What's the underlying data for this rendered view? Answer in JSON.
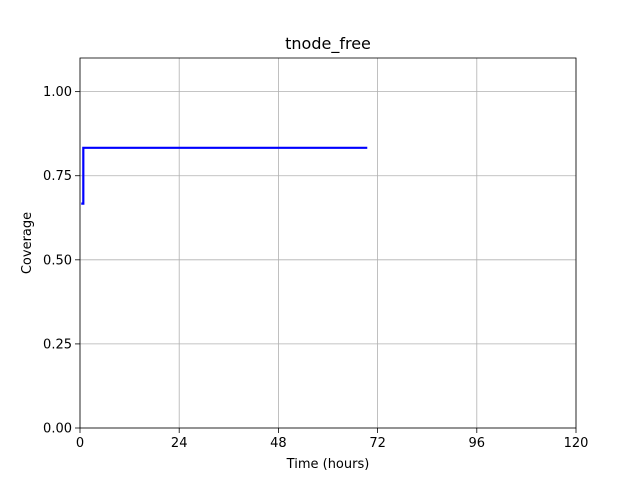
{
  "chart_data": {
    "type": "line",
    "title": "tnode_free",
    "xlabel": "Time (hours)",
    "ylabel": "Coverage",
    "xlim": [
      0,
      120
    ],
    "ylim": [
      0,
      1.1
    ],
    "xticks": [
      0,
      24,
      48,
      72,
      96,
      120
    ],
    "xtick_labels": [
      "0",
      "24",
      "48",
      "72",
      "96",
      "120"
    ],
    "yticks": [
      0,
      0.25,
      0.5,
      0.75,
      1.0
    ],
    "ytick_labels": [
      "0.00",
      "0.25",
      "0.50",
      "0.75",
      "1.00"
    ],
    "grid": true,
    "series": [
      {
        "color": "#0000ff",
        "x": [
          0.3,
          0.3,
          0.8,
          0.8,
          69.5
        ],
        "y": [
          0.667,
          0.667,
          0.667,
          0.833,
          0.833
        ]
      }
    ]
  }
}
